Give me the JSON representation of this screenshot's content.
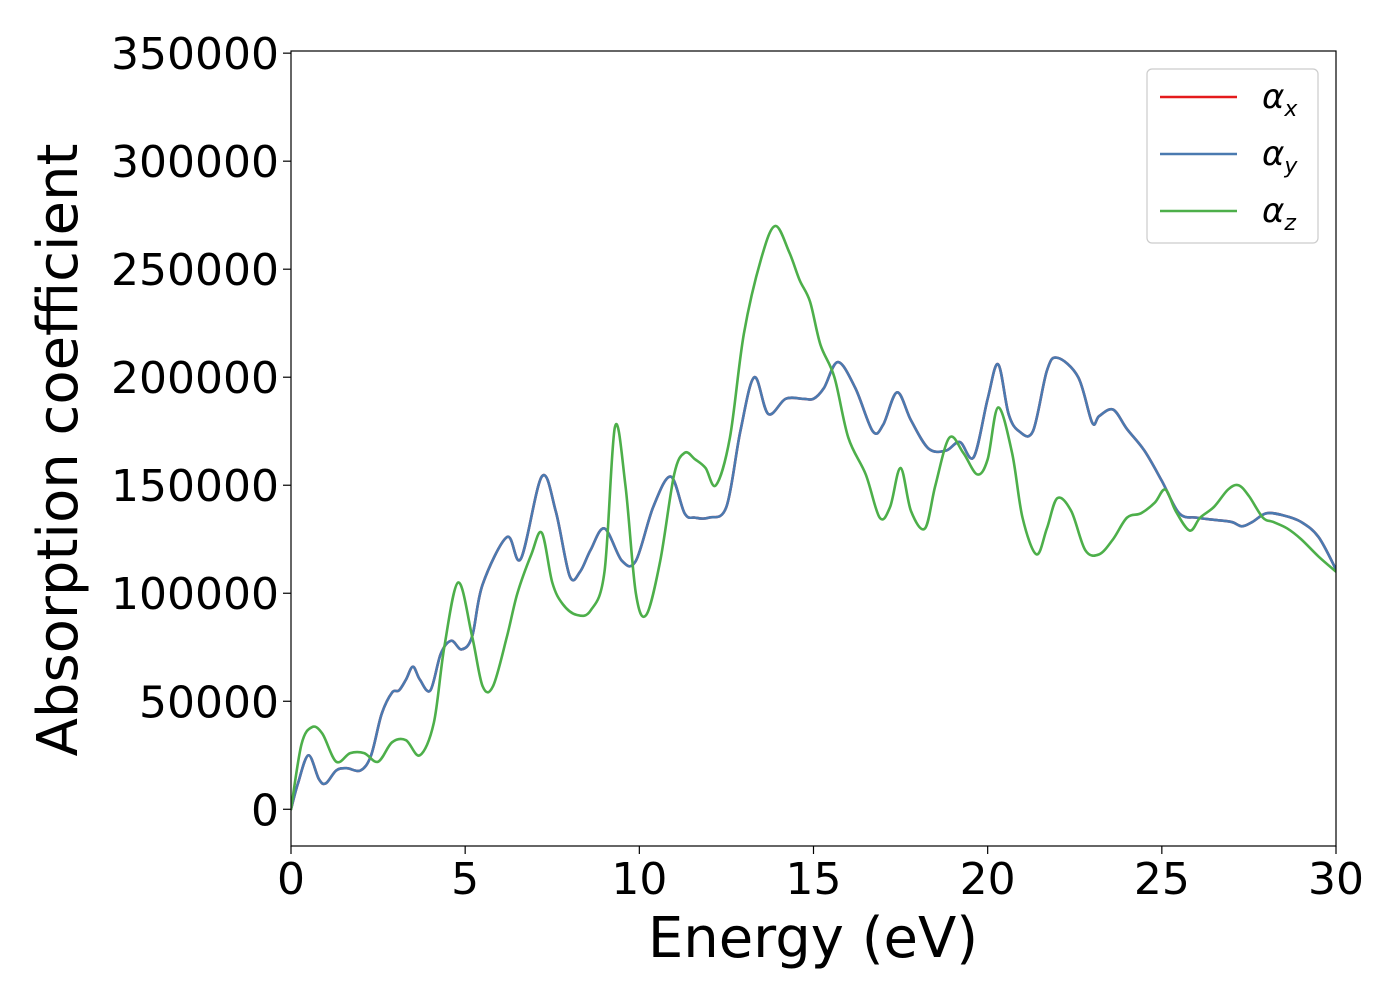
{
  "chart_data": {
    "type": "line",
    "title": "",
    "xlabel": "Energy (eV)",
    "ylabel": "Absorption coefficient",
    "xlim": [
      0,
      30
    ],
    "ylim": [
      -17000,
      351000
    ],
    "xticks": [
      0,
      5,
      10,
      15,
      20,
      25,
      30
    ],
    "xtick_labels": [
      "0",
      "5",
      "10",
      "15",
      "20",
      "25",
      "30"
    ],
    "yticks": [
      0,
      50000,
      100000,
      150000,
      200000,
      250000,
      300000,
      350000
    ],
    "ytick_labels": [
      "0",
      "50000",
      "100000",
      "150000",
      "200000",
      "250000",
      "300000",
      "350000"
    ],
    "grid": false,
    "legend_position": "top-right",
    "series": [
      {
        "name": "α_x",
        "symbol": "α",
        "subscript": "x",
        "color": "#e41a1c",
        "x": [
          0,
          0.2,
          0.5,
          0.8,
          1.0,
          1.3,
          1.6,
          2.0,
          2.3,
          2.6,
          2.9,
          3.1,
          3.3,
          3.5,
          3.7,
          4.0,
          4.3,
          4.6,
          4.9,
          5.2,
          5.5,
          6.2,
          6.6,
          7.2,
          7.6,
          8.0,
          8.3,
          8.6,
          9.0,
          9.5,
          9.9,
          10.4,
          10.9,
          11.3,
          11.6,
          12.0,
          12.5,
          12.9,
          13.3,
          13.7,
          14.2,
          14.7,
          15.0,
          15.3,
          15.7,
          16.2,
          16.7,
          17.0,
          17.4,
          17.8,
          18.3,
          18.8,
          19.2,
          19.6,
          20.0,
          20.3,
          20.6,
          20.9,
          21.3,
          21.7,
          22.0,
          22.6,
          23.0,
          23.2,
          23.6,
          24.0,
          24.5,
          25.0,
          25.5,
          26.0,
          26.5,
          27.0,
          27.3,
          27.6,
          28.0,
          28.5,
          29.0,
          29.5,
          30.0
        ],
        "y": [
          0,
          12000,
          25000,
          14000,
          12000,
          18000,
          19000,
          18000,
          25000,
          44000,
          54000,
          55000,
          60000,
          66000,
          60000,
          55000,
          72000,
          78000,
          74000,
          80000,
          104000,
          126000,
          116000,
          154000,
          138000,
          108000,
          110000,
          120000,
          130000,
          115000,
          115000,
          140000,
          154000,
          137000,
          135000,
          135000,
          140000,
          175000,
          200000,
          183000,
          190000,
          190000,
          190000,
          195000,
          207000,
          195000,
          175000,
          178000,
          193000,
          180000,
          167000,
          166000,
          170000,
          163000,
          190000,
          206000,
          183000,
          175000,
          175000,
          203000,
          209000,
          200000,
          179000,
          182000,
          185000,
          176000,
          166000,
          152000,
          137000,
          135000,
          134000,
          133000,
          131000,
          133000,
          137000,
          136000,
          133000,
          126000,
          111000
        ]
      },
      {
        "name": "α_y",
        "symbol": "α",
        "subscript": "y",
        "color": "#4a7ab0",
        "x": [
          0,
          0.2,
          0.5,
          0.8,
          1.0,
          1.3,
          1.6,
          2.0,
          2.3,
          2.6,
          2.9,
          3.1,
          3.3,
          3.5,
          3.7,
          4.0,
          4.3,
          4.6,
          4.9,
          5.2,
          5.5,
          6.2,
          6.6,
          7.2,
          7.6,
          8.0,
          8.3,
          8.6,
          9.0,
          9.5,
          9.9,
          10.4,
          10.9,
          11.3,
          11.6,
          12.0,
          12.5,
          12.9,
          13.3,
          13.7,
          14.2,
          14.7,
          15.0,
          15.3,
          15.7,
          16.2,
          16.7,
          17.0,
          17.4,
          17.8,
          18.3,
          18.8,
          19.2,
          19.6,
          20.0,
          20.3,
          20.6,
          20.9,
          21.3,
          21.7,
          22.0,
          22.6,
          23.0,
          23.2,
          23.6,
          24.0,
          24.5,
          25.0,
          25.5,
          26.0,
          26.5,
          27.0,
          27.3,
          27.6,
          28.0,
          28.5,
          29.0,
          29.5,
          30.0
        ],
        "y": [
          0,
          12000,
          25000,
          14000,
          12000,
          18000,
          19000,
          18000,
          25000,
          44000,
          54000,
          55000,
          60000,
          66000,
          60000,
          55000,
          72000,
          78000,
          74000,
          80000,
          104000,
          126000,
          116000,
          154000,
          138000,
          108000,
          110000,
          120000,
          130000,
          115000,
          115000,
          140000,
          154000,
          137000,
          135000,
          135000,
          140000,
          175000,
          200000,
          183000,
          190000,
          190000,
          190000,
          195000,
          207000,
          195000,
          175000,
          178000,
          193000,
          180000,
          167000,
          166000,
          170000,
          163000,
          190000,
          206000,
          183000,
          175000,
          175000,
          203000,
          209000,
          200000,
          179000,
          182000,
          185000,
          176000,
          166000,
          152000,
          137000,
          135000,
          134000,
          133000,
          131000,
          133000,
          137000,
          136000,
          133000,
          126000,
          111000
        ]
      },
      {
        "name": "α_z",
        "symbol": "α",
        "subscript": "z",
        "color": "#4daf4a",
        "x": [
          0,
          0.3,
          0.6,
          0.9,
          1.3,
          1.7,
          2.1,
          2.5,
          2.9,
          3.3,
          3.7,
          4.1,
          4.4,
          4.8,
          5.2,
          5.5,
          5.8,
          6.2,
          6.5,
          6.9,
          7.2,
          7.5,
          7.8,
          8.2,
          8.6,
          9.0,
          9.3,
          9.6,
          9.9,
          10.2,
          10.6,
          11.0,
          11.3,
          11.6,
          11.9,
          12.2,
          12.6,
          13.0,
          13.5,
          13.9,
          14.3,
          14.6,
          14.9,
          15.2,
          15.6,
          16.0,
          16.5,
          16.9,
          17.2,
          17.5,
          17.8,
          18.2,
          18.5,
          18.9,
          19.3,
          19.7,
          20.0,
          20.3,
          20.7,
          21.0,
          21.4,
          21.7,
          22.0,
          22.4,
          22.8,
          23.2,
          23.6,
          24.0,
          24.4,
          24.8,
          25.1,
          25.4,
          25.8,
          26.1,
          26.5,
          26.9,
          27.2,
          27.5,
          27.9,
          28.2,
          28.6,
          29.0,
          29.5,
          30.0
        ],
        "y": [
          0,
          30000,
          38000,
          35000,
          22000,
          26000,
          26000,
          22000,
          31000,
          32000,
          25000,
          40000,
          75000,
          105000,
          80000,
          57000,
          57000,
          80000,
          100000,
          118000,
          128000,
          105000,
          95000,
          90000,
          92000,
          110000,
          177000,
          150000,
          100000,
          90000,
          115000,
          155000,
          165000,
          162000,
          158000,
          150000,
          172000,
          220000,
          255000,
          270000,
          258000,
          245000,
          235000,
          215000,
          200000,
          172000,
          155000,
          135000,
          140000,
          158000,
          138000,
          130000,
          150000,
          172000,
          165000,
          155000,
          162000,
          186000,
          165000,
          135000,
          118000,
          130000,
          144000,
          138000,
          120000,
          118000,
          125000,
          135000,
          137000,
          142000,
          148000,
          138000,
          129000,
          135000,
          140000,
          148000,
          150000,
          145000,
          135000,
          133000,
          130000,
          125000,
          117000,
          110000
        ]
      }
    ]
  }
}
